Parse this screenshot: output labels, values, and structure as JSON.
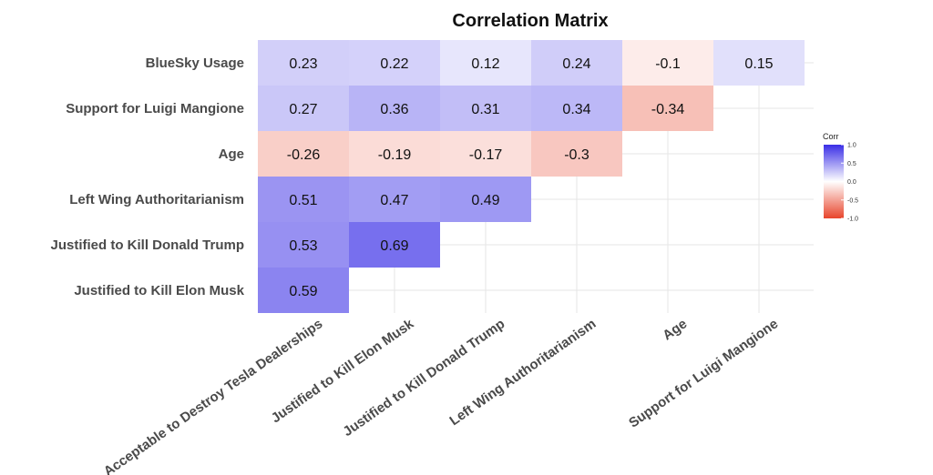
{
  "chart_data": {
    "type": "heatmap",
    "title": "Correlation Matrix",
    "x_categories": [
      "Acceptable to Destroy Tesla Dealerships",
      "Justified to Kill Elon Musk",
      "Justified to Kill Donald Trump",
      "Left Wing Authoritarianism",
      "Age",
      "Support for Luigi Mangione"
    ],
    "y_categories": [
      "BlueSky Usage",
      "Support for Luigi Mangione",
      "Age",
      "Left Wing Authoritarianism",
      "Justified to Kill Donald Trump",
      "Justified to Kill Elon Musk"
    ],
    "cells": [
      {
        "row": 0,
        "col": 0,
        "value": 0.23
      },
      {
        "row": 0,
        "col": 1,
        "value": 0.22
      },
      {
        "row": 0,
        "col": 2,
        "value": 0.12
      },
      {
        "row": 0,
        "col": 3,
        "value": 0.24
      },
      {
        "row": 0,
        "col": 4,
        "value": -0.1
      },
      {
        "row": 0,
        "col": 5,
        "value": 0.15
      },
      {
        "row": 1,
        "col": 0,
        "value": 0.27
      },
      {
        "row": 1,
        "col": 1,
        "value": 0.36
      },
      {
        "row": 1,
        "col": 2,
        "value": 0.31
      },
      {
        "row": 1,
        "col": 3,
        "value": 0.34
      },
      {
        "row": 1,
        "col": 4,
        "value": -0.34
      },
      {
        "row": 2,
        "col": 0,
        "value": -0.26
      },
      {
        "row": 2,
        "col": 1,
        "value": -0.19
      },
      {
        "row": 2,
        "col": 2,
        "value": -0.17
      },
      {
        "row": 2,
        "col": 3,
        "value": -0.3
      },
      {
        "row": 3,
        "col": 0,
        "value": 0.51
      },
      {
        "row": 3,
        "col": 1,
        "value": 0.47
      },
      {
        "row": 3,
        "col": 2,
        "value": 0.49
      },
      {
        "row": 4,
        "col": 0,
        "value": 0.53
      },
      {
        "row": 4,
        "col": 1,
        "value": 0.69
      },
      {
        "row": 5,
        "col": 0,
        "value": 0.59
      }
    ],
    "legend": {
      "title": "Corr",
      "ticks": [
        "1.0",
        "0.5",
        "0.0",
        "-0.5",
        "-1.0"
      ],
      "range": [
        -1,
        1
      ],
      "placement": "right"
    },
    "grid": true,
    "colors": {
      "high": "#3a2ee6",
      "mid": "#ffffff",
      "low": "#e8452c",
      "grid": "#e6e6e6"
    }
  }
}
